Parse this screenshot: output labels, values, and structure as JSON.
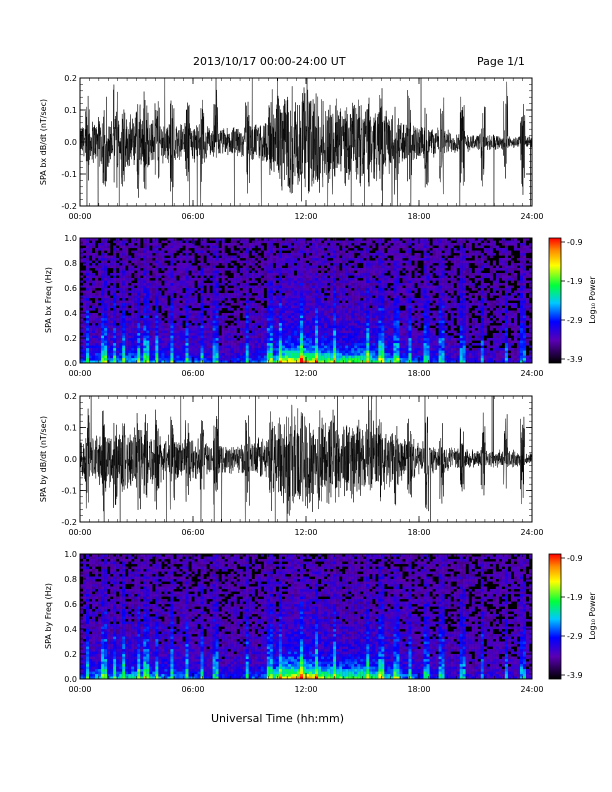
{
  "header": {
    "title": "2013/10/17  00:00-24:00 UT",
    "page": "Page 1/1"
  },
  "x_axis_label": "Universal Time (hh:mm)",
  "chart_data": [
    {
      "id": "bx-wave",
      "type": "line",
      "ylabel": "SPA bx dB/dt (nT/sec)",
      "x_range_hours": [
        0,
        24
      ],
      "x_ticks": [
        "00:00",
        "06:00",
        "12:00",
        "18:00",
        "24:00"
      ],
      "ylim": [
        -0.2,
        0.2
      ],
      "y_ticks": [
        "0.2",
        "0.1",
        "0.0",
        "-0.1",
        "-0.2"
      ],
      "color": "#000000",
      "envelope_hours": [
        0,
        1,
        2,
        3,
        4,
        5,
        6,
        7,
        8,
        9,
        10,
        11,
        12,
        13,
        14,
        15,
        16,
        17,
        18,
        19,
        20,
        21,
        22,
        23,
        24
      ],
      "envelope_amplitude": [
        0.06,
        0.09,
        0.08,
        0.1,
        0.08,
        0.07,
        0.07,
        0.05,
        0.05,
        0.06,
        0.08,
        0.2,
        0.2,
        0.16,
        0.14,
        0.15,
        0.12,
        0.08,
        0.06,
        0.05,
        0.04,
        0.03,
        0.03,
        0.02,
        0.02
      ],
      "bursts_hours": [
        0.4,
        1.3,
        1.9,
        2.3,
        3.1,
        3.5,
        4.1,
        4.9,
        5.7,
        6.5,
        7.2,
        8.9,
        10.1,
        10.6,
        11.8,
        12.6,
        13.5,
        15.3,
        16.0,
        16.8,
        17.5,
        18.4,
        19.2,
        20.3,
        21.4,
        22.6,
        23.5
      ]
    },
    {
      "id": "bx-spec",
      "type": "heatmap",
      "ylabel": "SPA bx Freq (Hz)",
      "x_range_hours": [
        0,
        24
      ],
      "x_ticks": [
        "00:00",
        "06:00",
        "12:00",
        "18:00",
        "24:00"
      ],
      "ylim": [
        0,
        1.0
      ],
      "y_ticks": [
        "1.0",
        "0.8",
        "0.6",
        "0.4",
        "0.2",
        "0.0"
      ],
      "colorbar": {
        "label": "Log₁₀ Power",
        "range": [
          -3.9,
          -0.9
        ],
        "ticks": [
          "-0.9",
          "-1.9",
          "-2.9",
          "-3.9"
        ]
      }
    },
    {
      "id": "by-wave",
      "type": "line",
      "ylabel": "SPA by dB/dt (nT/sec)",
      "x_range_hours": [
        0,
        24
      ],
      "x_ticks": [
        "00:00",
        "06:00",
        "12:00",
        "18:00",
        "24:00"
      ],
      "ylim": [
        -0.2,
        0.2
      ],
      "y_ticks": [
        "0.2",
        "0.1",
        "0.0",
        "-0.1",
        "-0.2"
      ],
      "color": "#000000",
      "envelope_hours": [
        0,
        1,
        2,
        3,
        4,
        5,
        6,
        7,
        8,
        9,
        10,
        11,
        12,
        13,
        14,
        15,
        16,
        17,
        18,
        19,
        20,
        21,
        22,
        23,
        24
      ],
      "envelope_amplitude": [
        0.06,
        0.1,
        0.09,
        0.12,
        0.09,
        0.08,
        0.08,
        0.05,
        0.05,
        0.06,
        0.09,
        0.2,
        0.2,
        0.16,
        0.14,
        0.15,
        0.12,
        0.08,
        0.06,
        0.05,
        0.04,
        0.03,
        0.03,
        0.03,
        0.02
      ],
      "bursts_hours": [
        0.4,
        1.3,
        1.9,
        2.3,
        3.1,
        3.5,
        4.1,
        4.9,
        5.7,
        6.5,
        7.2,
        8.9,
        10.1,
        10.6,
        11.8,
        12.6,
        13.5,
        15.3,
        16.0,
        16.8,
        17.5,
        18.4,
        19.2,
        20.3,
        21.4,
        22.6,
        23.5
      ]
    },
    {
      "id": "by-spec",
      "type": "heatmap",
      "ylabel": "SPA by Freq (Hz)",
      "x_range_hours": [
        0,
        24
      ],
      "x_ticks": [
        "00:00",
        "06:00",
        "12:00",
        "18:00",
        "24:00"
      ],
      "ylim": [
        0,
        1.0
      ],
      "y_ticks": [
        "1.0",
        "0.8",
        "0.6",
        "0.4",
        "0.2",
        "0.0"
      ],
      "colorbar": {
        "label": "Log₁₀ Power",
        "range": [
          -3.9,
          -0.9
        ],
        "ticks": [
          "-0.9",
          "-1.9",
          "-2.9",
          "-3.9"
        ]
      }
    }
  ]
}
